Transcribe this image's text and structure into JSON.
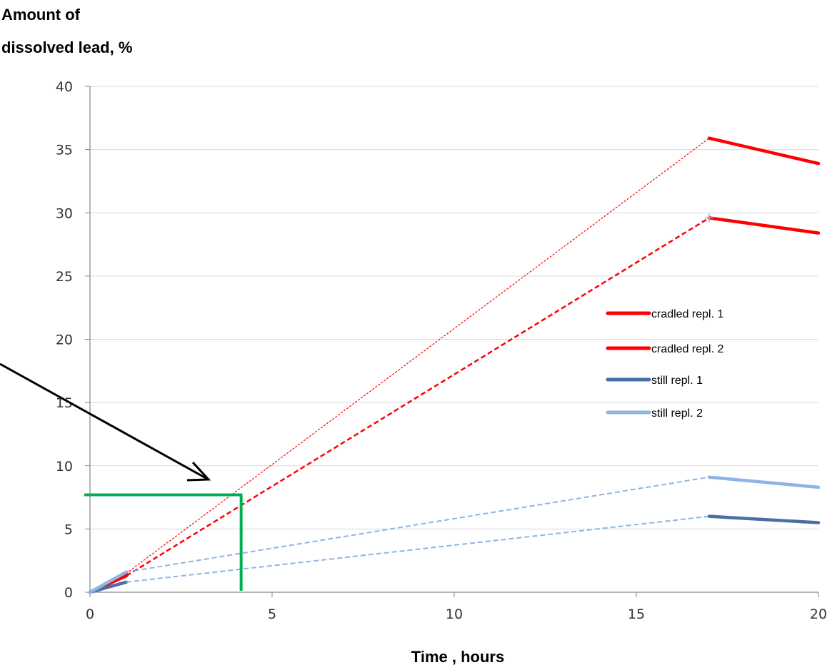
{
  "chart_data": {
    "type": "line",
    "ylabel_line1": "Amount of",
    "ylabel_line2": "dissolved lead, %",
    "xlabel": "Time , hours",
    "xlim": [
      0,
      20
    ],
    "ylim": [
      0,
      40
    ],
    "xticks": [
      0,
      5,
      10,
      15,
      20
    ],
    "yticks": [
      0,
      5,
      10,
      15,
      20,
      25,
      30,
      35,
      40
    ],
    "grid": "horizontal",
    "legend_position": "right",
    "series": [
      {
        "name": "cradled repl. 1",
        "color": "#ff0000",
        "x": [
          0,
          1,
          17,
          20
        ],
        "y": [
          0,
          1.5,
          35.9,
          33.9
        ]
      },
      {
        "name": "cradled repl. 2",
        "color": "#ff0000",
        "x": [
          0,
          1,
          17,
          20
        ],
        "y": [
          0,
          1.3,
          29.6,
          28.4
        ]
      },
      {
        "name": "still repl. 1",
        "color": "#4a6fa5",
        "x": [
          0,
          1,
          17,
          20
        ],
        "y": [
          0,
          0.8,
          6.0,
          5.5
        ]
      },
      {
        "name": "still repl. 2",
        "color": "#8eb4e3",
        "x": [
          0,
          1,
          17,
          20
        ],
        "y": [
          0,
          1.6,
          9.1,
          8.3
        ]
      }
    ],
    "annotations": {
      "green_guide": {
        "x": 4.15,
        "y": 7.7,
        "color": "#00b050"
      },
      "arrow": {
        "color": "#000000"
      }
    }
  }
}
